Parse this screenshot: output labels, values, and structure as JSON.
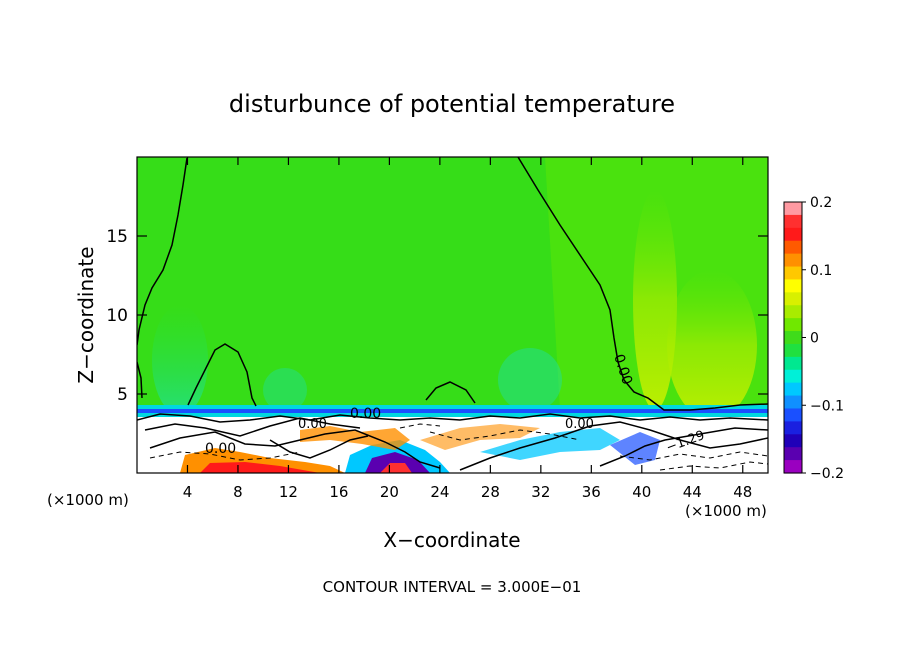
{
  "chart_data": {
    "type": "contour",
    "title": "disturbunce of potential temperature",
    "xlabel": "X−coordinate",
    "ylabel": "Z−coordinate",
    "x_unit": "(×1000 m)",
    "xlim": [
      0,
      50
    ],
    "ylim": [
      0,
      20
    ],
    "x_ticks": [
      4,
      8,
      12,
      16,
      20,
      24,
      28,
      32,
      36,
      40,
      44,
      48
    ],
    "x_tick_labels": [
      "4",
      "8",
      "12",
      "16",
      "20",
      "24",
      "28",
      "32",
      "36",
      "40",
      "44",
      "48"
    ],
    "y_ticks": [
      5,
      10,
      15
    ],
    "y_tick_labels": [
      "5",
      "10",
      "15"
    ],
    "contour_labels": [
      "0.00",
      "0.00",
      "0.00",
      "0.00",
      "0.00",
      "−1.29"
    ],
    "footer": "CONTOUR INTERVAL = 3.000E−01",
    "colorbar": {
      "ticks": [
        0.2,
        0.1,
        0,
        -0.1,
        -0.2
      ],
      "tick_labels": [
        "0.2",
        "0.1",
        "0",
        "−0.1",
        "−0.2"
      ],
      "colors": [
        "#ff9aa2",
        "#ff3030",
        "#ff1a1a",
        "#ff5a00",
        "#ff9000",
        "#ffc800",
        "#ffff00",
        "#d8f000",
        "#a8ec00",
        "#70e800",
        "#3fdc1a",
        "#20e040",
        "#00e890",
        "#00f0d8",
        "#00c8ff",
        "#1090ff",
        "#1a50ff",
        "#1a20e0",
        "#2000b8",
        "#5a00b0",
        "#9a00c0"
      ]
    }
  }
}
